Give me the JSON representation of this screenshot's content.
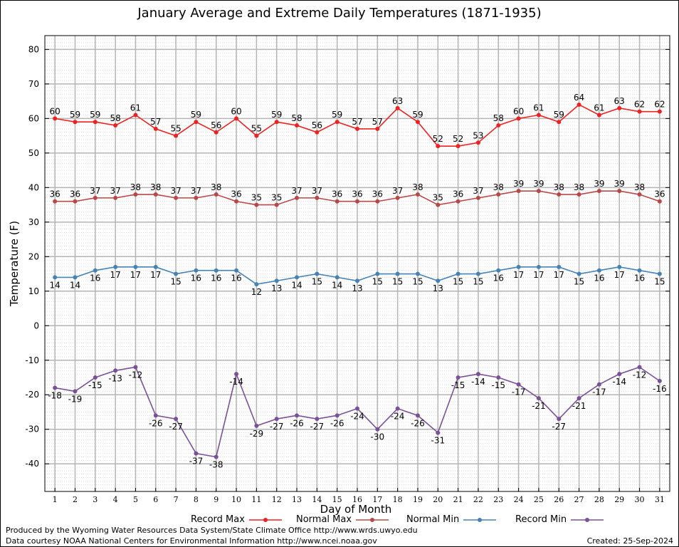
{
  "chart_data": {
    "type": "line",
    "title": "January Average and Extreme Daily Temperatures (1871-1935)",
    "xlabel": "Day of Month",
    "ylabel": "Temperature (F)",
    "x": [
      1,
      2,
      3,
      4,
      5,
      6,
      7,
      8,
      9,
      10,
      11,
      12,
      13,
      14,
      15,
      16,
      17,
      18,
      19,
      20,
      21,
      22,
      23,
      24,
      25,
      26,
      27,
      28,
      29,
      30,
      31
    ],
    "xlim": [
      0.5,
      31.5
    ],
    "ylim": [
      -48,
      84
    ],
    "yticks": [
      -40,
      -30,
      -20,
      -10,
      0,
      10,
      20,
      30,
      40,
      50,
      60,
      70,
      80
    ],
    "grid": true,
    "legend_position": "bottom",
    "series": [
      {
        "name": "Record Max",
        "color": "#ee2222",
        "label_position": "above",
        "values": [
          60,
          59,
          59,
          58,
          61,
          57,
          55,
          59,
          56,
          60,
          55,
          59,
          58,
          56,
          59,
          57,
          57,
          63,
          59,
          52,
          52,
          53,
          58,
          60,
          61,
          59,
          64,
          61,
          63,
          62,
          62
        ]
      },
      {
        "name": "Normal Max",
        "color": "#b84848",
        "label_position": "above",
        "values": [
          36,
          36,
          37,
          37,
          38,
          38,
          37,
          37,
          38,
          36,
          35,
          35,
          37,
          37,
          36,
          36,
          36,
          37,
          38,
          35,
          36,
          37,
          38,
          39,
          39,
          38,
          38,
          39,
          39,
          38,
          36
        ]
      },
      {
        "name": "Normal Min",
        "color": "#4682b4",
        "label_position": "below",
        "values": [
          14,
          14,
          16,
          17,
          17,
          17,
          15,
          16,
          16,
          16,
          12,
          13,
          14,
          15,
          14,
          13,
          15,
          15,
          15,
          13,
          15,
          15,
          16,
          17,
          17,
          17,
          15,
          16,
          17,
          16,
          15
        ]
      },
      {
        "name": "Record Min",
        "color": "#7a5199",
        "label_position": "below",
        "values": [
          -18,
          -19,
          -15,
          -13,
          -12,
          -26,
          -27,
          -37,
          -38,
          -14,
          -29,
          -27,
          -26,
          -27,
          -26,
          -24,
          -30,
          -24,
          -26,
          -31,
          -15,
          -14,
          -15,
          -17,
          -21,
          -27,
          -21,
          -17,
          -14,
          -12,
          -16
        ]
      }
    ]
  },
  "footer": {
    "produced_by": "Produced by the Wyoming Water Resources Data System/State Climate Office http://www.wrds.uwyo.edu",
    "courtesy": "Data courtesy NOAA National Centers for Environmental Information http://www.ncei.noaa.gov",
    "created": "Created:  25-Sep-2024"
  }
}
